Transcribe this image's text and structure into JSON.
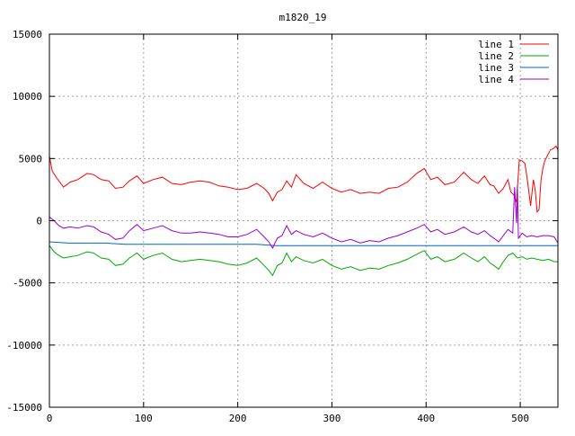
{
  "chart_data": {
    "type": "line",
    "title": "m1820_19",
    "xlim": [
      0,
      540
    ],
    "ylim": [
      -15000,
      15000
    ],
    "xticks": [
      0,
      100,
      200,
      300,
      400,
      500
    ],
    "yticks": [
      -15000,
      -10000,
      -5000,
      0,
      5000,
      10000,
      15000
    ],
    "grid": true,
    "legend_position": "top-right",
    "series": [
      {
        "name": "line 1",
        "color": "#ff0000",
        "x": [
          0,
          3,
          8,
          15,
          22,
          30,
          40,
          47,
          55,
          63,
          70,
          78,
          85,
          93,
          100,
          110,
          120,
          130,
          140,
          150,
          160,
          170,
          180,
          190,
          200,
          210,
          220,
          228,
          233,
          237,
          242,
          247,
          252,
          257,
          262,
          270,
          280,
          290,
          300,
          310,
          320,
          330,
          340,
          350,
          360,
          370,
          380,
          390,
          398,
          405,
          412,
          420,
          430,
          440,
          448,
          455,
          462,
          468,
          472,
          477,
          482,
          487,
          490,
          493,
          496,
          499,
          502,
          505,
          508,
          511,
          514,
          516,
          518,
          520,
          522,
          524,
          526,
          528,
          530,
          532,
          535,
          538,
          540
        ],
        "y": [
          5200,
          4000,
          3400,
          2700,
          3100,
          3300,
          3800,
          3700,
          3300,
          3200,
          2600,
          2700,
          3200,
          3600,
          3000,
          3300,
          3500,
          3000,
          2900,
          3100,
          3200,
          3100,
          2800,
          2700,
          2500,
          2600,
          3000,
          2600,
          2200,
          1600,
          2300,
          2500,
          3200,
          2700,
          3700,
          3000,
          2600,
          3100,
          2600,
          2300,
          2500,
          2200,
          2300,
          2200,
          2600,
          2700,
          3100,
          3800,
          4200,
          3300,
          3500,
          2900,
          3100,
          3900,
          3300,
          3000,
          3600,
          2900,
          2800,
          2200,
          2600,
          3300,
          2300,
          2100,
          1500,
          4900,
          4800,
          4600,
          3000,
          1200,
          3300,
          2400,
          700,
          900,
          3200,
          4200,
          4800,
          5100,
          5400,
          5700,
          5800,
          6000,
          5700
        ]
      },
      {
        "name": "line 2",
        "color": "#00aa00",
        "x": [
          0,
          5,
          10,
          15,
          22,
          30,
          40,
          47,
          55,
          63,
          70,
          78,
          85,
          93,
          100,
          110,
          120,
          130,
          140,
          150,
          160,
          170,
          180,
          190,
          200,
          210,
          220,
          228,
          233,
          237,
          242,
          247,
          252,
          257,
          262,
          270,
          280,
          290,
          300,
          310,
          320,
          330,
          340,
          350,
          360,
          370,
          380,
          390,
          398,
          405,
          412,
          420,
          430,
          440,
          448,
          455,
          462,
          468,
          472,
          477,
          482,
          487,
          492,
          497,
          502,
          507,
          512,
          518,
          524,
          530,
          536,
          540
        ],
        "y": [
          -2000,
          -2500,
          -2800,
          -3000,
          -2900,
          -2800,
          -2500,
          -2600,
          -3000,
          -3100,
          -3600,
          -3500,
          -3000,
          -2600,
          -3100,
          -2800,
          -2600,
          -3100,
          -3300,
          -3200,
          -3100,
          -3200,
          -3300,
          -3500,
          -3600,
          -3400,
          -3000,
          -3600,
          -4000,
          -4400,
          -3600,
          -3400,
          -2600,
          -3300,
          -2900,
          -3200,
          -3400,
          -3100,
          -3600,
          -3900,
          -3700,
          -4000,
          -3800,
          -3900,
          -3600,
          -3400,
          -3100,
          -2700,
          -2400,
          -3100,
          -2900,
          -3300,
          -3100,
          -2600,
          -3000,
          -3300,
          -2900,
          -3400,
          -3600,
          -3900,
          -3300,
          -2800,
          -2600,
          -3000,
          -2900,
          -3100,
          -3000,
          -3100,
          -3200,
          -3100,
          -3300,
          -3300
        ]
      },
      {
        "name": "line 3",
        "color": "#0066cc",
        "x": [
          0,
          20,
          40,
          60,
          80,
          100,
          120,
          140,
          160,
          180,
          200,
          220,
          240,
          260,
          280,
          300,
          320,
          340,
          360,
          380,
          400,
          420,
          440,
          460,
          480,
          500,
          520,
          540
        ],
        "y": [
          -1700,
          -1800,
          -1800,
          -1800,
          -1900,
          -1900,
          -1900,
          -1900,
          -1900,
          -1900,
          -1900,
          -1900,
          -2000,
          -2000,
          -2000,
          -2000,
          -2000,
          -2000,
          -2000,
          -2000,
          -2000,
          -2000,
          -2000,
          -2000,
          -2000,
          -2000,
          -2000,
          -2000
        ]
      },
      {
        "name": "line 4",
        "color": "#9900cc",
        "x": [
          0,
          5,
          10,
          15,
          22,
          30,
          40,
          47,
          55,
          63,
          70,
          78,
          85,
          93,
          100,
          110,
          120,
          130,
          140,
          150,
          160,
          170,
          180,
          190,
          200,
          210,
          220,
          228,
          233,
          237,
          242,
          247,
          252,
          257,
          262,
          270,
          280,
          290,
          300,
          310,
          320,
          330,
          340,
          350,
          360,
          370,
          380,
          390,
          398,
          405,
          412,
          420,
          430,
          440,
          448,
          455,
          462,
          468,
          472,
          477,
          482,
          487,
          492,
          494,
          496,
          497,
          498,
          502,
          507,
          512,
          518,
          524,
          530,
          536,
          540
        ],
        "y": [
          300,
          0,
          -400,
          -600,
          -500,
          -600,
          -400,
          -500,
          -900,
          -1100,
          -1500,
          -1400,
          -800,
          -300,
          -800,
          -600,
          -400,
          -800,
          -1000,
          -1000,
          -900,
          -1000,
          -1100,
          -1300,
          -1300,
          -1100,
          -700,
          -1300,
          -1700,
          -2200,
          -1400,
          -1200,
          -400,
          -1100,
          -800,
          -1100,
          -1300,
          -1000,
          -1400,
          -1700,
          -1500,
          -1800,
          -1600,
          -1700,
          -1400,
          -1200,
          -900,
          -600,
          -300,
          -900,
          -700,
          -1100,
          -900,
          -500,
          -900,
          -1100,
          -800,
          -1200,
          -1400,
          -1700,
          -1200,
          -700,
          -1000,
          2700,
          -200,
          2800,
          -1400,
          -1000,
          -1300,
          -1200,
          -1300,
          -1200,
          -1200,
          -1300,
          -1800
        ]
      }
    ]
  }
}
